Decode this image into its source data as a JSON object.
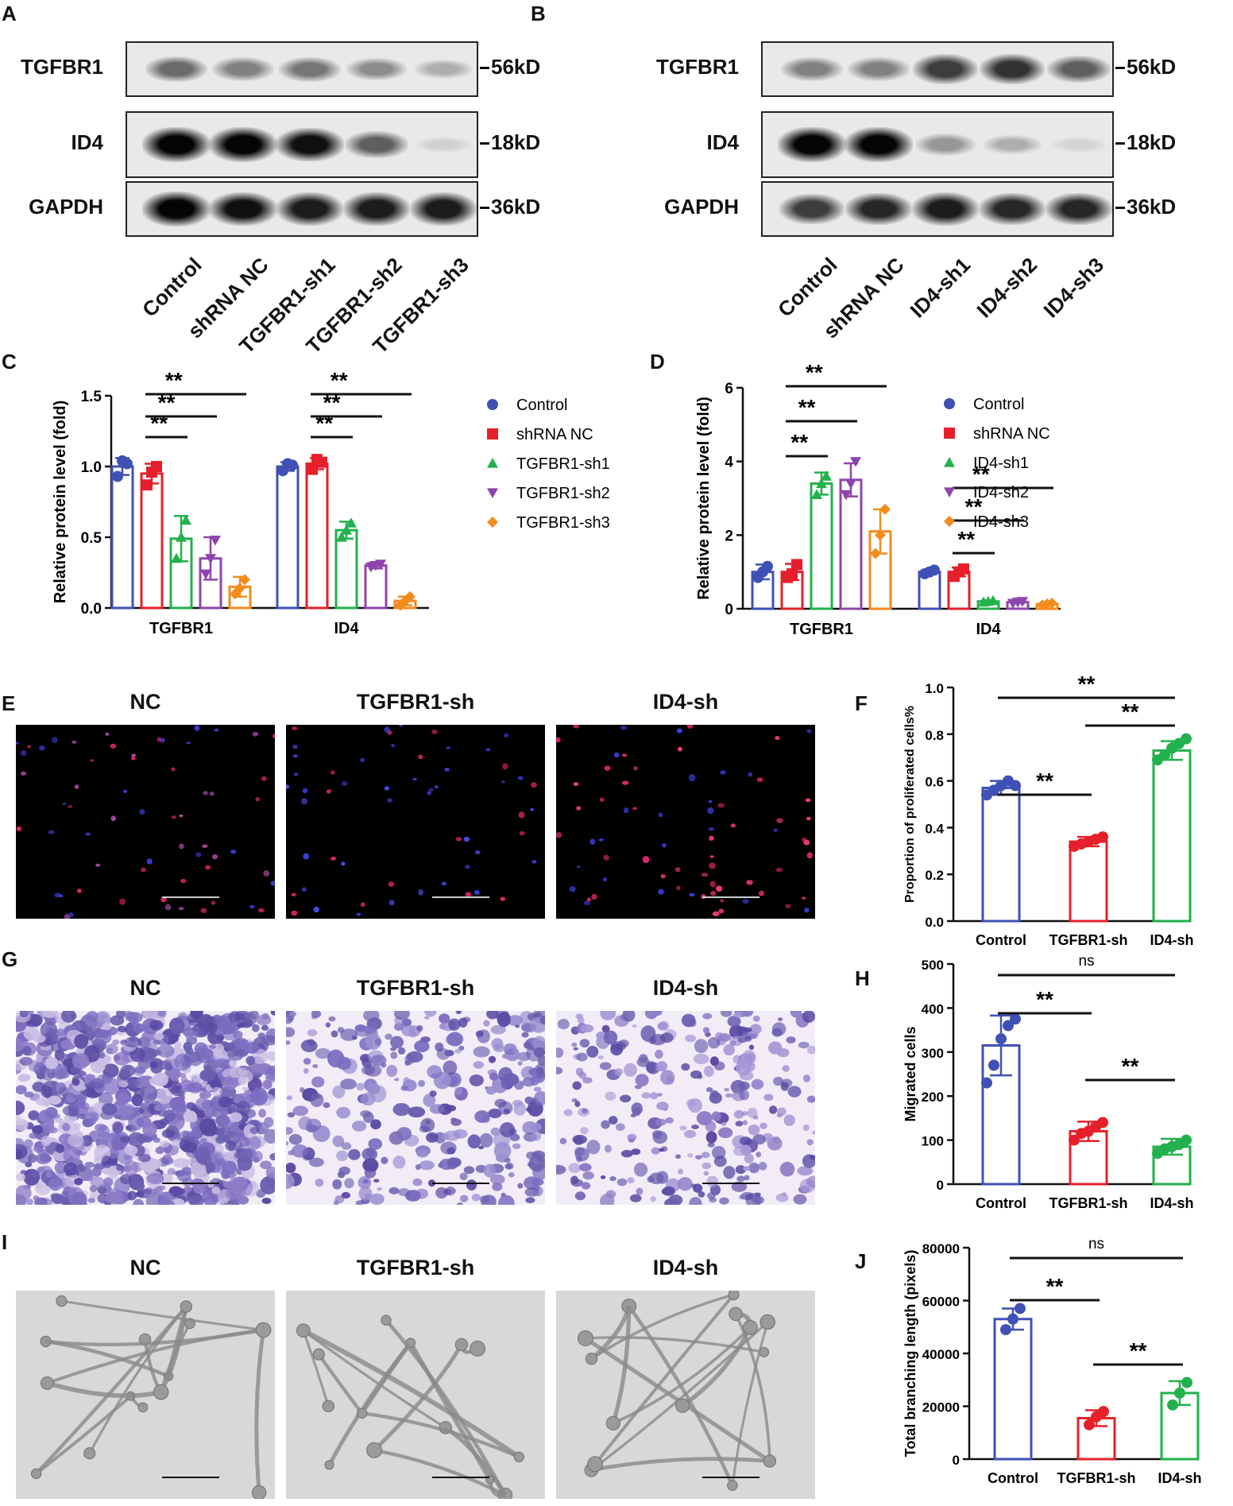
{
  "panels": {
    "A": {
      "letter": "A",
      "rows": [
        {
          "label": "TGFBR1",
          "kd": "56kD",
          "bands": [
            0.55,
            0.45,
            0.5,
            0.4,
            0.25
          ]
        },
        {
          "label": "ID4",
          "kd": "18kD",
          "bands": [
            1,
            1,
            0.95,
            0.6,
            0.1
          ]
        },
        {
          "label": "GAPDH",
          "kd": "36kD",
          "bands": [
            1,
            0.95,
            0.9,
            0.9,
            0.9
          ]
        }
      ],
      "lanes": [
        "Control",
        "shRNA NC",
        "TGFBR1-sh1",
        "TGFBR1-sh2",
        "TGFBR1-sh3"
      ]
    },
    "B": {
      "letter": "B",
      "rows": [
        {
          "label": "TGFBR1",
          "kd": "56kD",
          "bands": [
            0.45,
            0.45,
            0.75,
            0.8,
            0.6
          ]
        },
        {
          "label": "ID4",
          "kd": "18kD",
          "bands": [
            1,
            1,
            0.35,
            0.25,
            0.08
          ]
        },
        {
          "label": "GAPDH",
          "kd": "36kD",
          "bands": [
            0.75,
            0.85,
            0.9,
            0.85,
            0.85
          ]
        }
      ],
      "lanes": [
        "Control",
        "shRNA NC",
        "ID4-sh1",
        "ID4-sh2",
        "ID4-sh3"
      ]
    },
    "C": {
      "letter": "C"
    },
    "D": {
      "letter": "D"
    },
    "E": {
      "letter": "E",
      "titles": [
        "NC",
        "TGFBR1-sh",
        "ID4-sh"
      ]
    },
    "F": {
      "letter": "F"
    },
    "G": {
      "letter": "G",
      "titles": [
        "NC",
        "TGFBR1-sh",
        "ID4-sh"
      ]
    },
    "H": {
      "letter": "H"
    },
    "I": {
      "letter": "I",
      "titles": [
        "NC",
        "TGFBR1-sh",
        "ID4-sh"
      ]
    },
    "J": {
      "letter": "J"
    }
  },
  "colors": {
    "control": "#3f51b5",
    "nc": "#e5202a",
    "sh1": "#22b14c",
    "sh2": "#8e44ad",
    "sh3": "#f28c1e"
  },
  "chart_data": [
    {
      "id": "C",
      "type": "bar",
      "ylabel": "Relative protein level (fold)",
      "categories": [
        "TGFBR1",
        "ID4"
      ],
      "ylim": [
        0,
        1.5
      ],
      "yticks": [
        "0.0",
        "0.5",
        "1.0",
        "1.5"
      ],
      "series": [
        {
          "name": "Control",
          "values": [
            1.0,
            1.0
          ],
          "err": [
            0.06,
            0.03
          ],
          "points": [
            [
              0.93,
              1.04,
              1.02
            ],
            [
              0.97,
              1.02,
              1.01
            ]
          ]
        },
        {
          "name": "shRNA NC",
          "values": [
            0.95,
            1.02
          ],
          "err": [
            0.07,
            0.04
          ],
          "points": [
            [
              0.87,
              0.96,
              1.0
            ],
            [
              0.98,
              1.05,
              1.03
            ]
          ]
        },
        {
          "name": "TGFBR1-sh1",
          "values": [
            0.49,
            0.55
          ],
          "err": [
            0.16,
            0.06
          ],
          "points": [
            [
              0.35,
              0.5,
              0.62
            ],
            [
              0.5,
              0.55,
              0.6
            ]
          ]
        },
        {
          "name": "TGFBR1-sh2",
          "values": [
            0.35,
            0.3
          ],
          "err": [
            0.15,
            0.02
          ],
          "points": [
            [
              0.24,
              0.35,
              0.48
            ],
            [
              0.29,
              0.3,
              0.31
            ]
          ]
        },
        {
          "name": "TGFBR1-sh3",
          "values": [
            0.15,
            0.05
          ],
          "err": [
            0.07,
            0.03
          ],
          "points": [
            [
              0.1,
              0.14,
              0.2
            ],
            [
              0.02,
              0.05,
              0.08
            ]
          ]
        }
      ],
      "annotations": [
        "**",
        "**",
        "**",
        "**",
        "**",
        "**"
      ],
      "legend": "right"
    },
    {
      "id": "D",
      "type": "bar",
      "ylabel": "Relative protein level (fold)",
      "categories": [
        "TGFBR1",
        "ID4"
      ],
      "ylim": [
        0,
        6
      ],
      "yticks": [
        "0",
        "2",
        "4",
        "6"
      ],
      "series": [
        {
          "name": "Control",
          "values": [
            1.0,
            1.0
          ],
          "err": [
            0.2,
            0.06
          ],
          "points": [
            [
              0.85,
              1.0,
              1.15
            ],
            [
              0.95,
              1.0,
              1.05
            ]
          ]
        },
        {
          "name": "shRNA NC",
          "values": [
            1.0,
            1.0
          ],
          "err": [
            0.22,
            0.12
          ],
          "points": [
            [
              0.85,
              0.95,
              1.2
            ],
            [
              0.88,
              1.0,
              1.08
            ]
          ]
        },
        {
          "name": "ID4-sh1",
          "values": [
            3.4,
            0.2
          ],
          "err": [
            0.3,
            0.03
          ],
          "points": [
            [
              3.1,
              3.4,
              3.6
            ],
            [
              0.18,
              0.2,
              0.22
            ]
          ]
        },
        {
          "name": "ID4-sh2",
          "values": [
            3.5,
            0.18
          ],
          "err": [
            0.45,
            0.03
          ],
          "points": [
            [
              3.1,
              3.4,
              4.0
            ],
            [
              0.15,
              0.18,
              0.2
            ]
          ]
        },
        {
          "name": "ID4-sh3",
          "values": [
            2.1,
            0.13
          ],
          "err": [
            0.6,
            0.03
          ],
          "points": [
            [
              1.5,
              2.0,
              2.7
            ],
            [
              0.1,
              0.13,
              0.15
            ]
          ]
        }
      ],
      "annotations": [
        "**",
        "**",
        "**",
        "**",
        "**",
        "**"
      ],
      "legend": "right"
    },
    {
      "id": "F",
      "type": "bar",
      "ylabel": "Proportion of proliferated cells%",
      "categories": [
        "Control",
        "TGFBR1-sh",
        "ID4-sh"
      ],
      "ylim": [
        0,
        1.0
      ],
      "yticks": [
        "0.0",
        "0.2",
        "0.4",
        "0.6",
        "0.8",
        "1.0"
      ],
      "values": [
        0.57,
        0.34,
        0.73
      ],
      "err": [
        0.03,
        0.02,
        0.04
      ],
      "points": [
        [
          0.54,
          0.56,
          0.58,
          0.6,
          0.58
        ],
        [
          0.32,
          0.33,
          0.34,
          0.35,
          0.36
        ],
        [
          0.69,
          0.71,
          0.74,
          0.76,
          0.78
        ]
      ],
      "annotations": [
        "**",
        "**",
        "**"
      ]
    },
    {
      "id": "H",
      "type": "bar",
      "ylabel": "Migrated cells",
      "categories": [
        "Control",
        "TGFBR1-sh",
        "ID4-sh"
      ],
      "ylim": [
        0,
        500
      ],
      "yticks": [
        "0",
        "100",
        "200",
        "300",
        "400",
        "500"
      ],
      "values": [
        315,
        120,
        85
      ],
      "err": [
        68,
        22,
        18
      ],
      "points": [
        [
          230,
          270,
          330,
          360,
          375
        ],
        [
          100,
          115,
          120,
          130,
          140
        ],
        [
          70,
          80,
          85,
          90,
          100
        ]
      ],
      "annotations": [
        "**",
        "**",
        "ns"
      ]
    },
    {
      "id": "J",
      "type": "bar",
      "ylabel": "Total branching length (pixels)",
      "categories": [
        "Control",
        "TGFBR1-sh",
        "ID4-sh"
      ],
      "ylim": [
        0,
        80000
      ],
      "yticks": [
        "0",
        "20000",
        "40000",
        "60000",
        "80000"
      ],
      "values": [
        53000,
        15500,
        25000
      ],
      "err": [
        4000,
        3000,
        4500
      ],
      "points": [
        [
          49000,
          53000,
          57000
        ],
        [
          13000,
          16000,
          18000
        ],
        [
          20500,
          25000,
          29000
        ]
      ],
      "annotations": [
        "**",
        "**",
        "ns"
      ]
    }
  ]
}
